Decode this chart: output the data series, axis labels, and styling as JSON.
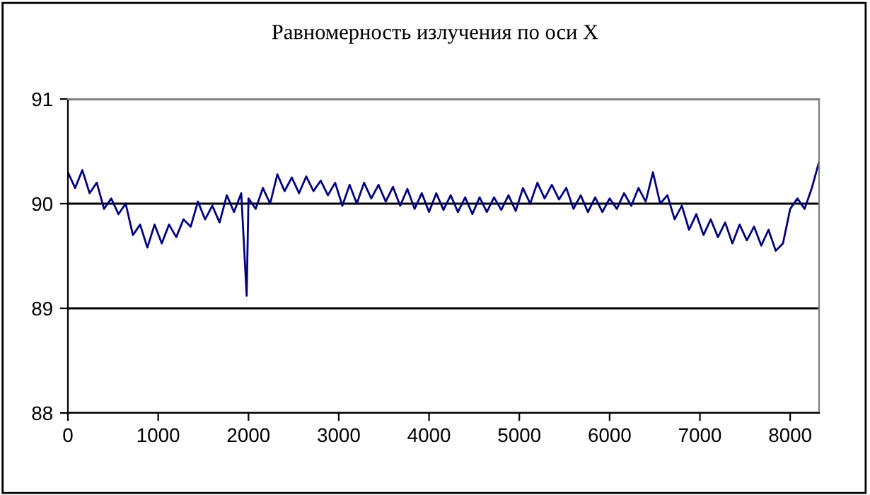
{
  "chart_data": {
    "type": "line",
    "title": "Равномерность излучения по оси X",
    "x": [
      0,
      80,
      160,
      240,
      320,
      400,
      480,
      560,
      640,
      720,
      800,
      880,
      960,
      1040,
      1120,
      1200,
      1280,
      1360,
      1440,
      1520,
      1600,
      1680,
      1760,
      1840,
      1920,
      1980,
      2000,
      2080,
      2160,
      2240,
      2320,
      2400,
      2480,
      2560,
      2640,
      2720,
      2800,
      2880,
      2960,
      3040,
      3120,
      3200,
      3280,
      3360,
      3440,
      3520,
      3600,
      3680,
      3760,
      3840,
      3920,
      4000,
      4080,
      4160,
      4240,
      4320,
      4400,
      4480,
      4560,
      4640,
      4720,
      4800,
      4880,
      4960,
      5040,
      5120,
      5200,
      5280,
      5360,
      5440,
      5520,
      5600,
      5680,
      5760,
      5840,
      5920,
      6000,
      6080,
      6160,
      6240,
      6320,
      6400,
      6480,
      6560,
      6640,
      6720,
      6800,
      6880,
      6960,
      7040,
      7120,
      7200,
      7280,
      7360,
      7440,
      7520,
      7600,
      7680,
      7760,
      7840,
      7920,
      8000,
      8080,
      8160,
      8240,
      8320
    ],
    "series": [
      {
        "color": "#000080",
        "values": [
          90.3,
          90.15,
          90.32,
          90.1,
          90.2,
          89.95,
          90.05,
          89.9,
          90.0,
          89.7,
          89.8,
          89.58,
          89.8,
          89.62,
          89.8,
          89.68,
          89.85,
          89.78,
          90.02,
          89.85,
          89.98,
          89.82,
          90.08,
          89.92,
          90.1,
          89.12,
          90.05,
          89.95,
          90.15,
          90.0,
          90.28,
          90.12,
          90.25,
          90.1,
          90.26,
          90.12,
          90.22,
          90.08,
          90.2,
          89.98,
          90.18,
          90.0,
          90.2,
          90.05,
          90.18,
          90.02,
          90.16,
          89.98,
          90.14,
          89.95,
          90.1,
          89.92,
          90.1,
          89.94,
          90.08,
          89.92,
          90.06,
          89.9,
          90.06,
          89.92,
          90.06,
          89.94,
          90.08,
          89.93,
          90.15,
          90.0,
          90.2,
          90.05,
          90.18,
          90.04,
          90.15,
          89.95,
          90.08,
          89.92,
          90.06,
          89.92,
          90.05,
          89.95,
          90.1,
          89.98,
          90.15,
          90.02,
          90.3,
          90.0,
          90.08,
          89.85,
          89.98,
          89.75,
          89.9,
          89.7,
          89.85,
          89.68,
          89.82,
          89.62,
          89.8,
          89.65,
          89.78,
          89.6,
          89.75,
          89.55,
          89.62,
          89.95,
          90.05,
          89.95,
          90.15,
          90.4
        ]
      }
    ],
    "xlim": [
      0,
      8320
    ],
    "xticks": [
      0,
      1000,
      2000,
      3000,
      4000,
      5000,
      6000,
      7000,
      8000
    ],
    "ylim": [
      88,
      91
    ],
    "yticks": [
      88,
      89,
      90,
      91
    ],
    "grid": "y",
    "line_style": "solid",
    "marker": "none"
  }
}
